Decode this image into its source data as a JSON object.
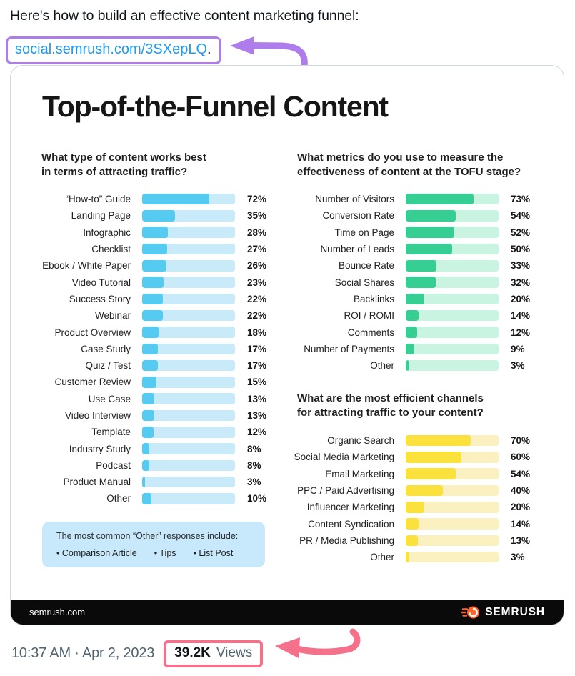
{
  "colors": {
    "accent_purple": "#AF7DEB",
    "accent_pink": "#F4708B",
    "link_blue": "#1D9BF0",
    "muted_gray": "#536471",
    "footer_bg": "#0A0A0A",
    "semrush_orange": "#FF642D",
    "blue_fill": "#56CBF1",
    "blue_track": "#C9EAF9",
    "green_fill": "#36CE93",
    "green_track": "#C9F4E1",
    "yellow_fill": "#FBE13C",
    "yellow_track": "#FBF0C0",
    "note_bg": "#C7E9FB"
  },
  "tweet": {
    "text": "Here's how to build an effective content marketing funnel:",
    "link": "social.semrush.com/3SXepLQ",
    "link_suffix": ".",
    "timestamp": "10:37 AM · Apr 2, 2023",
    "views_count": "39.2K",
    "views_label": "Views"
  },
  "infographic": {
    "title": "Top-of-the-Funnel Content",
    "note": {
      "heading": "The most common “Other” responses include:",
      "bullets": [
        "Comparison Article",
        "Tips",
        "List Post"
      ]
    },
    "footer": {
      "site": "semrush.com",
      "brand": "SEMRUSH"
    }
  },
  "chart_data": [
    {
      "type": "bar",
      "orientation": "horizontal",
      "title": "What type of content works best in terms of attracting traffic?",
      "title_lines": [
        "What type of content works best",
        "in terms of attracting traffic?"
      ],
      "unit": "%",
      "xlim": [
        0,
        100
      ],
      "grid": false,
      "legend": "none",
      "bar_color": "#56CBF1",
      "track_color": "#C9EAF9",
      "categories": [
        "“How-to” Guide",
        "Landing Page",
        "Infographic",
        "Checklist",
        "Ebook / White Paper",
        "Video Tutorial",
        "Success Story",
        "Webinar",
        "Product Overview",
        "Case Study",
        "Quiz / Test",
        "Customer Review",
        "Use Case",
        "Video Interview",
        "Template",
        "Industry Study",
        "Podcast",
        "Product Manual",
        "Other"
      ],
      "values": [
        72,
        35,
        28,
        27,
        26,
        23,
        22,
        22,
        18,
        17,
        17,
        15,
        13,
        13,
        12,
        8,
        8,
        3,
        10
      ]
    },
    {
      "type": "bar",
      "orientation": "horizontal",
      "title": "What metrics do you use to measure the effectiveness of content at the TOFU stage?",
      "title_lines": [
        "What metrics do you use to measure the",
        "effectiveness of content at the TOFU stage?"
      ],
      "unit": "%",
      "xlim": [
        0,
        100
      ],
      "grid": false,
      "legend": "none",
      "bar_color": "#36CE93",
      "track_color": "#C9F4E1",
      "categories": [
        "Number of Visitors",
        "Conversion Rate",
        "Time on Page",
        "Number of Leads",
        "Bounce Rate",
        "Social Shares",
        "Backlinks",
        "ROI / ROMI",
        "Comments",
        "Number of Payments",
        "Other"
      ],
      "values": [
        73,
        54,
        52,
        50,
        33,
        32,
        20,
        14,
        12,
        9,
        3
      ]
    },
    {
      "type": "bar",
      "orientation": "horizontal",
      "title": "What are the most efficient channels for attracting traffic to your content?",
      "title_lines": [
        "What are the most efficient channels",
        "for attracting traffic to your content?"
      ],
      "unit": "%",
      "xlim": [
        0,
        100
      ],
      "grid": false,
      "legend": "none",
      "bar_color": "#FBE13C",
      "track_color": "#FBF0C0",
      "categories": [
        "Organic Search",
        "Social Media Marketing",
        "Email Marketing",
        "PPC / Paid Advertising",
        "Influencer Marketing",
        "Content Syndication",
        "PR / Media Publishing",
        "Other"
      ],
      "values": [
        70,
        60,
        54,
        40,
        20,
        14,
        13,
        3
      ]
    }
  ]
}
